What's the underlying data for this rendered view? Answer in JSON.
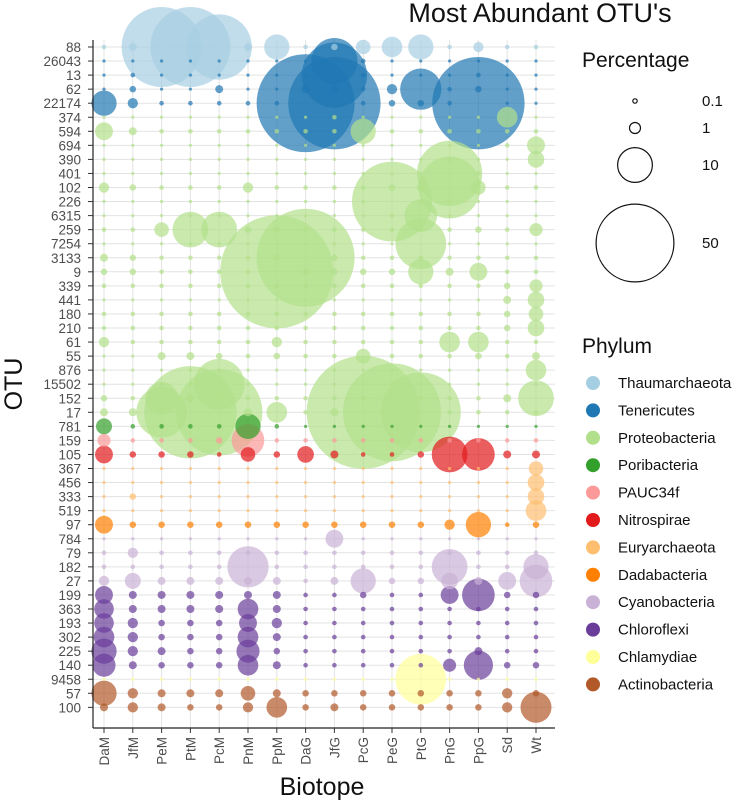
{
  "chart_data": {
    "type": "bubble",
    "title": "Most Abundant OTU's",
    "xlabel": "Biotope",
    "ylabel": "OTU",
    "biotopes": [
      "DaM",
      "JfM",
      "PeM",
      "PtM",
      "PcM",
      "PnM",
      "PpM",
      "DaG",
      "JfG",
      "PcG",
      "PeG",
      "PtG",
      "PnG",
      "PpG",
      "Sd",
      "Wt"
    ],
    "otus": [
      {
        "id": "88",
        "phylum": "Thaumarchaeota"
      },
      {
        "id": "26043",
        "phylum": "Tenericutes"
      },
      {
        "id": "13",
        "phylum": "Tenericutes"
      },
      {
        "id": "62",
        "phylum": "Tenericutes"
      },
      {
        "id": "22174",
        "phylum": "Tenericutes"
      },
      {
        "id": "374",
        "phylum": "Proteobacteria"
      },
      {
        "id": "594",
        "phylum": "Proteobacteria"
      },
      {
        "id": "694",
        "phylum": "Proteobacteria"
      },
      {
        "id": "390",
        "phylum": "Proteobacteria"
      },
      {
        "id": "401",
        "phylum": "Proteobacteria"
      },
      {
        "id": "102",
        "phylum": "Proteobacteria"
      },
      {
        "id": "226",
        "phylum": "Proteobacteria"
      },
      {
        "id": "6315",
        "phylum": "Proteobacteria"
      },
      {
        "id": "259",
        "phylum": "Proteobacteria"
      },
      {
        "id": "7254",
        "phylum": "Proteobacteria"
      },
      {
        "id": "3133",
        "phylum": "Proteobacteria"
      },
      {
        "id": "9",
        "phylum": "Proteobacteria"
      },
      {
        "id": "339",
        "phylum": "Proteobacteria"
      },
      {
        "id": "441",
        "phylum": "Proteobacteria"
      },
      {
        "id": "180",
        "phylum": "Proteobacteria"
      },
      {
        "id": "210",
        "phylum": "Proteobacteria"
      },
      {
        "id": "61",
        "phylum": "Proteobacteria"
      },
      {
        "id": "55",
        "phylum": "Proteobacteria"
      },
      {
        "id": "876",
        "phylum": "Proteobacteria"
      },
      {
        "id": "15502",
        "phylum": "Proteobacteria"
      },
      {
        "id": "152",
        "phylum": "Proteobacteria"
      },
      {
        "id": "17",
        "phylum": "Proteobacteria"
      },
      {
        "id": "781",
        "phylum": "Poribacteria"
      },
      {
        "id": "159",
        "phylum": "PAUC34f"
      },
      {
        "id": "105",
        "phylum": "Nitrospirae"
      },
      {
        "id": "367",
        "phylum": "Euryarchaeota"
      },
      {
        "id": "456",
        "phylum": "Euryarchaeota"
      },
      {
        "id": "333",
        "phylum": "Euryarchaeota"
      },
      {
        "id": "519",
        "phylum": "Euryarchaeota"
      },
      {
        "id": "97",
        "phylum": "Dadabacteria"
      },
      {
        "id": "784",
        "phylum": "Cyanobacteria"
      },
      {
        "id": "79",
        "phylum": "Cyanobacteria"
      },
      {
        "id": "182",
        "phylum": "Cyanobacteria"
      },
      {
        "id": "27",
        "phylum": "Cyanobacteria"
      },
      {
        "id": "199",
        "phylum": "Chloroflexi"
      },
      {
        "id": "363",
        "phylum": "Chloroflexi"
      },
      {
        "id": "193",
        "phylum": "Chloroflexi"
      },
      {
        "id": "302",
        "phylum": "Chloroflexi"
      },
      {
        "id": "225",
        "phylum": "Chloroflexi"
      },
      {
        "id": "140",
        "phylum": "Chloroflexi"
      },
      {
        "id": "9458",
        "phylum": "Chlamydiae"
      },
      {
        "id": "57",
        "phylum": "Actinobacteria"
      },
      {
        "id": "100",
        "phylum": "Actinobacteria"
      }
    ],
    "legend_size": {
      "title": "Percentage",
      "items": [
        {
          "label": "0.1",
          "value": 0.1
        },
        {
          "label": "1",
          "value": 1
        },
        {
          "label": "10",
          "value": 10
        },
        {
          "label": "50",
          "value": 50
        }
      ]
    },
    "legend_phylum": {
      "title": "Phylum",
      "items": [
        {
          "name": "Thaumarchaeota",
          "color": "#a6cee3"
        },
        {
          "name": "Tenericutes",
          "color": "#1f78b4"
        },
        {
          "name": "Proteobacteria",
          "color": "#b2df8a"
        },
        {
          "name": "Poribacteria",
          "color": "#33a02c"
        },
        {
          "name": "PAUC34f",
          "color": "#fb9a99"
        },
        {
          "name": "Nitrospirae",
          "color": "#e31a1c"
        },
        {
          "name": "Euryarchaeota",
          "color": "#fdbf6f"
        },
        {
          "name": "Dadabacteria",
          "color": "#ff7f00"
        },
        {
          "name": "Cyanobacteria",
          "color": "#cab2d6"
        },
        {
          "name": "Chloroflexi",
          "color": "#6a3d9a"
        },
        {
          "name": "Chlamydiae",
          "color": "#ffff99"
        },
        {
          "name": "Actinobacteria",
          "color": "#b15928"
        }
      ]
    },
    "values_percent": {
      "88": [
        0.1,
        0.3,
        30,
        30,
        20,
        0.3,
        3,
        0.1,
        0.2,
        1,
        2,
        3,
        0.1,
        0.5,
        0.1,
        0.1
      ],
      "26043": [
        0.05,
        0.05,
        0.05,
        0.05,
        0.05,
        0.05,
        0.05,
        0.05,
        10,
        0.1,
        0.05,
        0.05,
        0.05,
        0.05,
        0.05,
        0.05
      ],
      "13": [
        0.05,
        0.1,
        0.05,
        0.05,
        0.05,
        0.05,
        0.05,
        0.05,
        20,
        0.1,
        0.05,
        0.05,
        0.05,
        0.1,
        0.05,
        0.05
      ],
      "62": [
        0.05,
        0.2,
        0.05,
        0.05,
        0.3,
        0.05,
        0.05,
        0.3,
        0.3,
        0.1,
        0.5,
        8,
        0.1,
        0.2,
        0.05,
        0.05
      ],
      "22174": [
        3,
        0.5,
        0.1,
        0.1,
        0.1,
        0.1,
        0.1,
        45,
        40,
        0.1,
        0.2,
        0.2,
        0.1,
        40,
        0.05,
        0.05
      ],
      "374": [
        0.05,
        0.05,
        0.05,
        0.05,
        0.05,
        0.05,
        0.05,
        0.05,
        0.1,
        0.05,
        0.05,
        0.05,
        0.05,
        0.05,
        2,
        0.05
      ],
      "594": [
        1.5,
        0.3,
        0.1,
        0.1,
        0.1,
        0.1,
        0.1,
        0.1,
        0.1,
        3,
        0.1,
        0.1,
        0.1,
        0.1,
        0.1,
        0.1
      ],
      "694": [
        0.05,
        0.05,
        0.05,
        0.05,
        0.05,
        0.05,
        0.05,
        0.05,
        0.05,
        0.05,
        0.05,
        0.05,
        0.05,
        0.05,
        0.1,
        1.5
      ],
      "390": [
        0.05,
        0.05,
        0.05,
        0.05,
        0.05,
        0.05,
        0.05,
        0.05,
        0.05,
        0.05,
        0.05,
        0.05,
        0.1,
        0.05,
        0.05,
        1.3
      ],
      "401": [
        0.05,
        0.05,
        0.05,
        0.05,
        0.05,
        0.05,
        0.05,
        0.05,
        0.05,
        0.05,
        0.05,
        0.05,
        20,
        0.1,
        0.05,
        0.05
      ],
      "102": [
        0.5,
        0.2,
        0.1,
        0.1,
        0.1,
        0.5,
        0.1,
        0.1,
        0.1,
        0.1,
        0.2,
        0.3,
        18,
        1,
        0.1,
        0.1
      ],
      "226": [
        0.05,
        0.05,
        0.05,
        0.05,
        0.05,
        0.05,
        0.05,
        0.05,
        0.05,
        0.05,
        30,
        0.1,
        0.1,
        0.05,
        0.05,
        0.05
      ],
      "6315": [
        0.05,
        0.05,
        0.05,
        0.05,
        0.05,
        0.05,
        0.05,
        0.05,
        0.05,
        0.05,
        0.1,
        5,
        0.05,
        0.05,
        0.05,
        0.05
      ],
      "259": [
        0.1,
        0.1,
        1,
        6,
        6,
        0.2,
        0.2,
        0.1,
        0.1,
        0.1,
        0.1,
        0.1,
        0.1,
        0.2,
        0.1,
        0.8
      ],
      "7254": [
        0.05,
        0.05,
        0.05,
        0.05,
        0.05,
        0.05,
        0.05,
        0.05,
        0.05,
        0.05,
        0.05,
        12,
        0.05,
        0.05,
        0.05,
        0.05
      ],
      "3133": [
        0.3,
        0.2,
        0.1,
        0.1,
        0.1,
        0.1,
        0.2,
        45,
        0.2,
        0.1,
        0.1,
        0.1,
        0.1,
        0.1,
        0.1,
        0.1
      ],
      "9": [
        0.2,
        0.2,
        0.1,
        0.1,
        0.1,
        0.1,
        60,
        0.2,
        0.2,
        0.2,
        0.2,
        3,
        0.3,
        1.5,
        0.1,
        0.1
      ],
      "339": [
        0.1,
        0.1,
        0.1,
        0.1,
        0.1,
        0.1,
        0.1,
        0.1,
        0.1,
        0.1,
        0.1,
        0.1,
        0.1,
        0.1,
        0.2,
        0.8
      ],
      "441": [
        0.05,
        0.05,
        0.05,
        0.05,
        0.05,
        0.05,
        0.05,
        0.05,
        0.05,
        0.05,
        0.05,
        0.05,
        0.05,
        0.05,
        0.3,
        1.3
      ],
      "180": [
        0.1,
        0.1,
        0.1,
        0.1,
        0.1,
        0.1,
        0.1,
        0.1,
        0.1,
        0.1,
        0.1,
        0.1,
        0.1,
        0.1,
        0.2,
        1
      ],
      "210": [
        0.1,
        0.1,
        0.1,
        0.1,
        0.1,
        0.1,
        0.1,
        0.1,
        0.1,
        0.1,
        0.1,
        0.1,
        0.1,
        0.1,
        0.2,
        1.3
      ],
      "61": [
        0.5,
        0.1,
        0.1,
        0.1,
        0.1,
        0.1,
        0.5,
        0.1,
        0.1,
        0.1,
        0.1,
        0.1,
        2,
        2,
        0.1,
        0.1
      ],
      "55": [
        0.05,
        0.05,
        0.3,
        0.3,
        0.2,
        0.1,
        0.2,
        0.1,
        0.1,
        1,
        0.1,
        0.1,
        0.1,
        0.2,
        0.1,
        0.3
      ],
      "876": [
        0.05,
        0.05,
        0.05,
        0.05,
        0.05,
        0.05,
        0.05,
        0.05,
        0.05,
        0.05,
        0.05,
        0.05,
        0.05,
        0.05,
        0.05,
        2
      ],
      "15502": [
        0.05,
        0.05,
        0.05,
        0.05,
        12,
        0.05,
        0.05,
        0.05,
        0.05,
        0.05,
        0.05,
        0.05,
        0.05,
        0.05,
        0.05,
        0.05
      ],
      "152": [
        0.2,
        0.1,
        5,
        0.3,
        0.3,
        0.1,
        0.1,
        0.1,
        0.1,
        0.1,
        0.1,
        0.1,
        0.1,
        0.1,
        0.3,
        6
      ],
      "17": [
        0.3,
        0.3,
        12,
        40,
        35,
        0.3,
        2,
        0.1,
        0.3,
        60,
        45,
        30,
        0.1,
        0.1,
        0.1,
        0.1
      ],
      "781": [
        1.2,
        0.1,
        0.1,
        0.1,
        0.1,
        3,
        0.1,
        0.05,
        0.05,
        0.05,
        0.05,
        0.05,
        0.05,
        0.05,
        0.05,
        0.05
      ],
      "159": [
        0.8,
        0.1,
        0.1,
        0.1,
        0.2,
        5,
        0.1,
        0.1,
        0.1,
        0.1,
        0.1,
        0.1,
        0.1,
        0.1,
        0.1,
        0.1
      ],
      "105": [
        1.5,
        0.2,
        0.2,
        0.2,
        0.1,
        1,
        0.2,
        1.3,
        0.3,
        0.1,
        0.1,
        0.2,
        6,
        5,
        0.3,
        0.3
      ],
      "367": [
        0.05,
        0.05,
        0.05,
        0.05,
        0.05,
        0.05,
        0.05,
        0.05,
        0.05,
        0.05,
        0.05,
        0.05,
        0.05,
        0.05,
        0.05,
        1
      ],
      "456": [
        0.05,
        0.05,
        0.05,
        0.05,
        0.05,
        0.05,
        0.05,
        0.05,
        0.05,
        0.05,
        0.05,
        0.05,
        0.05,
        0.05,
        0.05,
        1.3
      ],
      "333": [
        0.05,
        0.2,
        0.05,
        0.05,
        0.05,
        0.05,
        0.05,
        0.05,
        0.05,
        0.05,
        0.05,
        0.05,
        0.05,
        0.05,
        0.05,
        1.3
      ],
      "519": [
        0.05,
        0.05,
        0.05,
        0.05,
        0.05,
        0.05,
        0.05,
        0.05,
        0.05,
        0.05,
        0.05,
        0.05,
        0.05,
        0.05,
        0.05,
        2
      ],
      "97": [
        1.5,
        0.2,
        0.2,
        0.2,
        0.2,
        0.2,
        0.2,
        0.2,
        0.2,
        0.2,
        0.2,
        0.2,
        0.5,
        3,
        0.1,
        0.2
      ],
      "784": [
        0.05,
        0.05,
        0.05,
        0.05,
        0.05,
        0.05,
        0.05,
        0.05,
        1.5,
        0.05,
        0.05,
        0.05,
        0.05,
        0.05,
        0.05,
        0.05
      ],
      "79": [
        0.1,
        0.5,
        0.1,
        0.1,
        0.1,
        0.1,
        0.1,
        0.1,
        0.1,
        0.1,
        0.1,
        0.1,
        0.1,
        0.1,
        0.1,
        0.1
      ],
      "182": [
        0.1,
        0.1,
        0.1,
        0.1,
        0.1,
        8,
        0.1,
        0.1,
        0.1,
        0.1,
        0.1,
        0.1,
        6,
        0.1,
        0.1,
        3
      ],
      "27": [
        0.5,
        1.2,
        0.3,
        0.3,
        0.3,
        0.3,
        0.3,
        0.1,
        0.3,
        3,
        0.2,
        0.2,
        1.3,
        0.3,
        1.5,
        5
      ],
      "199": [
        1.5,
        0.3,
        0.3,
        0.3,
        0.3,
        0.3,
        0.3,
        0.1,
        0.1,
        0.2,
        0.1,
        0.1,
        1.5,
        5,
        0.2,
        0.2
      ],
      "363": [
        1.8,
        0.3,
        0.3,
        0.3,
        0.3,
        2,
        0.3,
        0.1,
        0.1,
        0.1,
        0.1,
        0.1,
        0.1,
        0.1,
        0.1,
        0.1
      ],
      "193": [
        1.8,
        0.5,
        0.2,
        0.2,
        0.2,
        1.5,
        0.5,
        0.1,
        0.1,
        0.1,
        0.1,
        0.1,
        0.1,
        0.1,
        0.1,
        0.1
      ],
      "302": [
        2,
        0.5,
        0.2,
        0.2,
        0.2,
        2,
        0.3,
        0.1,
        0.1,
        0.1,
        0.1,
        0.1,
        0.1,
        0.1,
        0.1,
        0.1
      ],
      "225": [
        3,
        0.5,
        0.3,
        0.2,
        0.2,
        2.5,
        0.2,
        0.1,
        0.1,
        0.1,
        0.1,
        0.1,
        0.1,
        0.3,
        0.1,
        0.1
      ],
      "140": [
        2.5,
        0.3,
        0.2,
        0.2,
        0.2,
        2,
        0.3,
        0.1,
        0.1,
        0.1,
        0.1,
        0.1,
        0.8,
        4,
        0.2,
        0.2
      ],
      "9458": [
        0.05,
        0.05,
        0.05,
        0.05,
        0.05,
        0.05,
        0.05,
        0.05,
        0.05,
        0.05,
        0.05,
        12,
        0.05,
        0.05,
        0.05,
        0.05
      ],
      "57": [
        3,
        0.5,
        0.3,
        0.3,
        0.3,
        1,
        0.3,
        0.2,
        0.2,
        0.2,
        0.2,
        0.2,
        0.2,
        0.2,
        0.5,
        0.2
      ],
      "100": [
        0.3,
        0.5,
        0.3,
        0.2,
        0.2,
        0.5,
        2,
        0.2,
        0.3,
        0.2,
        0.2,
        0.2,
        0.2,
        0.2,
        0.5,
        4.5
      ]
    }
  }
}
